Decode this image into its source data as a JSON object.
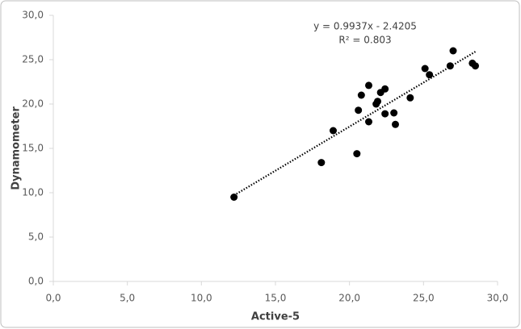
{
  "chart_data": {
    "type": "scatter",
    "x_label": "Active-5",
    "y_label": "Dynamometer",
    "x": [
      12.2,
      18.1,
      18.9,
      20.5,
      20.6,
      20.8,
      21.3,
      21.3,
      21.8,
      21.9,
      22.1,
      22.4,
      22.4,
      23.0,
      23.1,
      24.1,
      25.1,
      25.4,
      26.8,
      27.0,
      28.3,
      28.5
    ],
    "values": [
      9.5,
      13.4,
      17.0,
      14.4,
      19.3,
      21.0,
      18.0,
      22.1,
      20.0,
      20.3,
      21.3,
      21.7,
      18.9,
      19.0,
      17.7,
      20.7,
      24.0,
      23.3,
      24.3,
      26.0,
      24.6,
      24.3
    ],
    "color": "#000000",
    "xlim": [
      0,
      30
    ],
    "ylim": [
      0,
      30
    ],
    "xticks": [
      {
        "value": 0,
        "label": "0,0"
      },
      {
        "value": 5,
        "label": "5,0"
      },
      {
        "value": 10,
        "label": "10,0"
      },
      {
        "value": 15,
        "label": "15,0"
      },
      {
        "value": 20,
        "label": "20,0"
      },
      {
        "value": 25,
        "label": "25,0"
      },
      {
        "value": 30,
        "label": "30,0"
      }
    ],
    "yticks": [
      {
        "value": 0,
        "label": "0,0"
      },
      {
        "value": 5,
        "label": "5,0"
      },
      {
        "value": 10,
        "label": "10,0"
      },
      {
        "value": 15,
        "label": "15,0"
      },
      {
        "value": 20,
        "label": "20,0"
      },
      {
        "value": 25,
        "label": "25,0"
      },
      {
        "value": 30,
        "label": "30,0"
      }
    ],
    "grid": false,
    "trendline": {
      "equation": "y = 0.9937x - 2.4205",
      "r2_label": "R² = 0.803",
      "slope": 0.9937,
      "intercept": -2.4205
    }
  }
}
